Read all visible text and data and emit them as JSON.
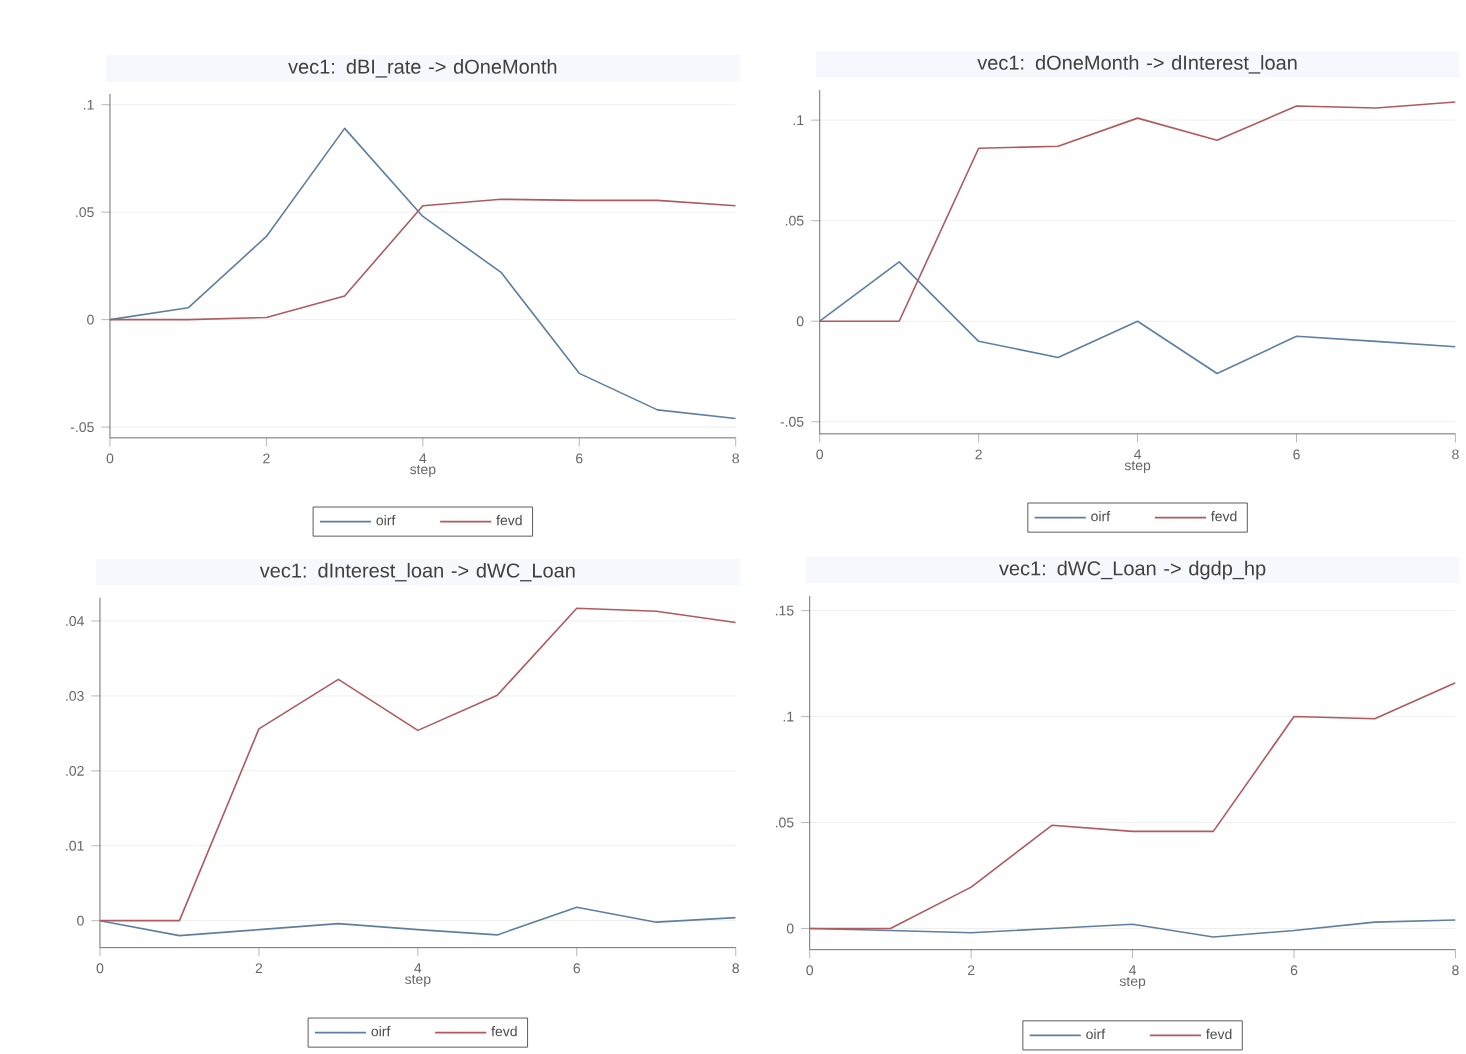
{
  "chart_data": [
    {
      "type": "line",
      "title": "vec1: dBI_rate -> dOneMonth",
      "xlabel": "step",
      "x": [
        0,
        1,
        2,
        3,
        4,
        5,
        6,
        7,
        8
      ],
      "xlim": [
        0,
        8
      ],
      "xticks": [
        0,
        2,
        4,
        6,
        8
      ],
      "ylim": [
        -0.055,
        0.105
      ],
      "yticks": [
        {
          "value": -0.05,
          "label": "-.05"
        },
        {
          "value": 0,
          "label": "0"
        },
        {
          "value": 0.05,
          "label": ".05"
        },
        {
          "value": 0.1,
          "label": ".1"
        }
      ],
      "grid": "y",
      "legend": "bottom",
      "marker": "none",
      "series": [
        {
          "name": "oirf",
          "color": "#5f7fa0",
          "values": [
            0,
            0.0055,
            0.0387,
            0.089,
            0.048,
            0.022,
            -0.025,
            -0.042,
            -0.046
          ]
        },
        {
          "name": "fevd",
          "color": "#b05a5f",
          "values": [
            0,
            0,
            0.001,
            0.011,
            0.053,
            0.056,
            0.0555,
            0.0555,
            0.053
          ]
        }
      ]
    },
    {
      "type": "line",
      "title": "vec1: dOneMonth -> dInterest_loan",
      "xlabel": "step",
      "x": [
        0,
        1,
        2,
        3,
        4,
        5,
        6,
        7,
        8
      ],
      "xlim": [
        0,
        8
      ],
      "xticks": [
        0,
        2,
        4,
        6,
        8
      ],
      "ylim": [
        -0.056,
        0.115
      ],
      "yticks": [
        {
          "value": -0.05,
          "label": "-.05"
        },
        {
          "value": 0,
          "label": "0"
        },
        {
          "value": 0.05,
          "label": ".05"
        },
        {
          "value": 0.1,
          "label": ".1"
        }
      ],
      "grid": "y",
      "legend": "bottom",
      "marker": "none",
      "series": [
        {
          "name": "oirf",
          "color": "#5f7fa0",
          "values": [
            0,
            0.0295,
            -0.01,
            -0.018,
            0,
            -0.026,
            -0.0075,
            -0.01,
            -0.0127
          ]
        },
        {
          "name": "fevd",
          "color": "#b05a5f",
          "values": [
            0,
            0,
            0.086,
            0.087,
            0.101,
            0.09,
            0.107,
            0.106,
            0.109
          ]
        }
      ]
    },
    {
      "type": "line",
      "title": "vec1: dInterest_loan -> dWC_Loan",
      "xlabel": "step",
      "x": [
        0,
        1,
        2,
        3,
        4,
        5,
        6,
        7,
        8
      ],
      "xlim": [
        0,
        8
      ],
      "xticks": [
        0,
        2,
        4,
        6,
        8
      ],
      "ylim": [
        -0.0036,
        0.0431
      ],
      "yticks": [
        {
          "value": 0,
          "label": "0"
        },
        {
          "value": 0.01,
          "label": ".01"
        },
        {
          "value": 0.02,
          "label": ".02"
        },
        {
          "value": 0.03,
          "label": ".03"
        },
        {
          "value": 0.04,
          "label": ".04"
        }
      ],
      "grid": "y",
      "legend": "bottom",
      "marker": "none",
      "series": [
        {
          "name": "oirf",
          "color": "#5f7fa0",
          "values": [
            0,
            -0.002,
            -0.0012,
            -0.0004,
            -0.0012,
            -0.0019,
            0.0018,
            -0.0002,
            0.0004
          ]
        },
        {
          "name": "fevd",
          "color": "#b05a5f",
          "values": [
            0,
            0,
            0.0256,
            0.0322,
            0.0254,
            0.0301,
            0.0417,
            0.0413,
            0.0398
          ]
        }
      ]
    },
    {
      "type": "line",
      "title": "vec1: dWC_Loan -> dgdp_hp",
      "xlabel": "step",
      "x": [
        0,
        1,
        2,
        3,
        4,
        5,
        6,
        7,
        8
      ],
      "xlim": [
        0,
        8
      ],
      "xticks": [
        0,
        2,
        4,
        6,
        8
      ],
      "ylim": [
        -0.01,
        0.157
      ],
      "yticks": [
        {
          "value": 0,
          "label": "0"
        },
        {
          "value": 0.05,
          "label": ".05"
        },
        {
          "value": 0.1,
          "label": ".1"
        },
        {
          "value": 0.15,
          "label": ".15"
        }
      ],
      "grid": "y",
      "legend": "bottom",
      "marker": "none",
      "series": [
        {
          "name": "oirf",
          "color": "#5f7fa0",
          "values": [
            0,
            -0.001,
            -0.002,
            0,
            0.002,
            -0.004,
            -0.001,
            0.003,
            0.004
          ]
        },
        {
          "name": "fevd",
          "color": "#b05a5f",
          "values": [
            0,
            0,
            0.0195,
            0.0487,
            0.0458,
            0.0458,
            0.1,
            0.099,
            0.116
          ]
        }
      ]
    }
  ]
}
